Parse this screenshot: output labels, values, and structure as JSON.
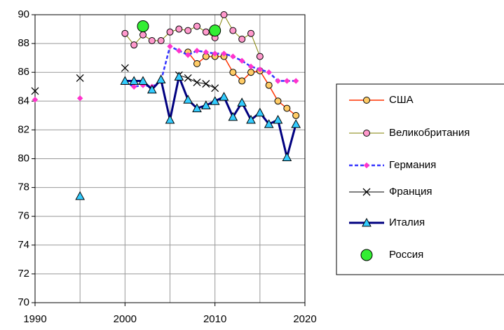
{
  "chart_data": {
    "type": "line",
    "x": [
      1990,
      1991,
      1992,
      1993,
      1994,
      1995,
      1996,
      1997,
      1998,
      1999,
      2000,
      2001,
      2002,
      2003,
      2004,
      2005,
      2006,
      2007,
      2008,
      2009,
      2010,
      2011,
      2012,
      2013,
      2014,
      2015,
      2016,
      2017,
      2018,
      2019
    ],
    "xlim": [
      1990,
      2020
    ],
    "xticks": [
      1990,
      2000,
      2010,
      2020
    ],
    "xgrid": [
      1990,
      1995,
      2000,
      2005,
      2010,
      2015,
      2020
    ],
    "ylim": [
      70,
      90
    ],
    "yticks": [
      70,
      72,
      74,
      76,
      78,
      80,
      82,
      84,
      86,
      88,
      90
    ],
    "grid": true,
    "legend": "right",
    "series": [
      {
        "name": "США",
        "color": "#ff3300",
        "marker": "circle",
        "marker_color": "#ffcc66",
        "line": true,
        "line_width": 1.5,
        "values": [
          null,
          null,
          null,
          null,
          null,
          null,
          null,
          null,
          null,
          null,
          null,
          null,
          null,
          null,
          null,
          null,
          null,
          87.4,
          86.6,
          87.1,
          87.1,
          87.1,
          86.0,
          85.4,
          86.0,
          86.1,
          85.1,
          84.0,
          83.5,
          83.0
        ]
      },
      {
        "name": "Великобритания",
        "color": "#808000",
        "marker": "circle",
        "marker_color": "#ff99cc",
        "line": true,
        "line_width": 1,
        "values": [
          null,
          null,
          null,
          null,
          null,
          null,
          null,
          null,
          null,
          null,
          88.7,
          87.9,
          88.6,
          88.2,
          88.2,
          88.8,
          89.0,
          88.9,
          89.2,
          88.8,
          88.4,
          90.0,
          88.9,
          88.3,
          88.7,
          87.1,
          null,
          null,
          null,
          null
        ]
      },
      {
        "name": "Германия",
        "color": "#3333ff",
        "marker": "diamond",
        "marker_color": "#ff33cc",
        "line": true,
        "dash": true,
        "line_width": 2.5,
        "values": [
          84.1,
          null,
          null,
          null,
          null,
          84.2,
          null,
          null,
          null,
          null,
          85.3,
          85.0,
          85.1,
          85.0,
          85.4,
          87.8,
          87.5,
          87.2,
          87.5,
          87.4,
          87.3,
          87.3,
          87.1,
          86.8,
          86.4,
          86.2,
          86.0,
          85.4,
          85.4,
          85.4
        ]
      },
      {
        "name": "Франция",
        "color": "#000000",
        "marker": "x",
        "marker_color": "#000000",
        "line": true,
        "line_width": 1,
        "values": [
          84.7,
          null,
          null,
          null,
          null,
          85.6,
          null,
          null,
          null,
          null,
          86.3,
          null,
          null,
          null,
          null,
          null,
          85.8,
          85.6,
          85.3,
          85.2,
          84.9,
          null,
          null,
          null,
          null,
          null,
          null,
          null,
          null,
          null
        ]
      },
      {
        "name": "Италия",
        "color": "#000080",
        "marker": "triangle",
        "marker_color": "#33ccff",
        "line": true,
        "line_width": 3,
        "values": [
          null,
          null,
          null,
          null,
          null,
          77.4,
          null,
          null,
          null,
          null,
          85.4,
          85.4,
          85.4,
          84.8,
          85.5,
          82.7,
          85.7,
          84.1,
          83.5,
          83.7,
          84.0,
          84.3,
          82.9,
          83.9,
          82.7,
          83.2,
          82.4,
          82.7,
          80.1,
          82.4
        ]
      },
      {
        "name": "Россия",
        "color": "#33cc33",
        "marker": "big-circle",
        "marker_color": "#33ee33",
        "line": false,
        "line_width": 0,
        "values": [
          null,
          null,
          null,
          null,
          null,
          null,
          null,
          null,
          null,
          null,
          null,
          null,
          89.2,
          null,
          null,
          null,
          null,
          null,
          null,
          null,
          88.9,
          null,
          null,
          null,
          null,
          null,
          null,
          null,
          null,
          null
        ]
      }
    ]
  }
}
